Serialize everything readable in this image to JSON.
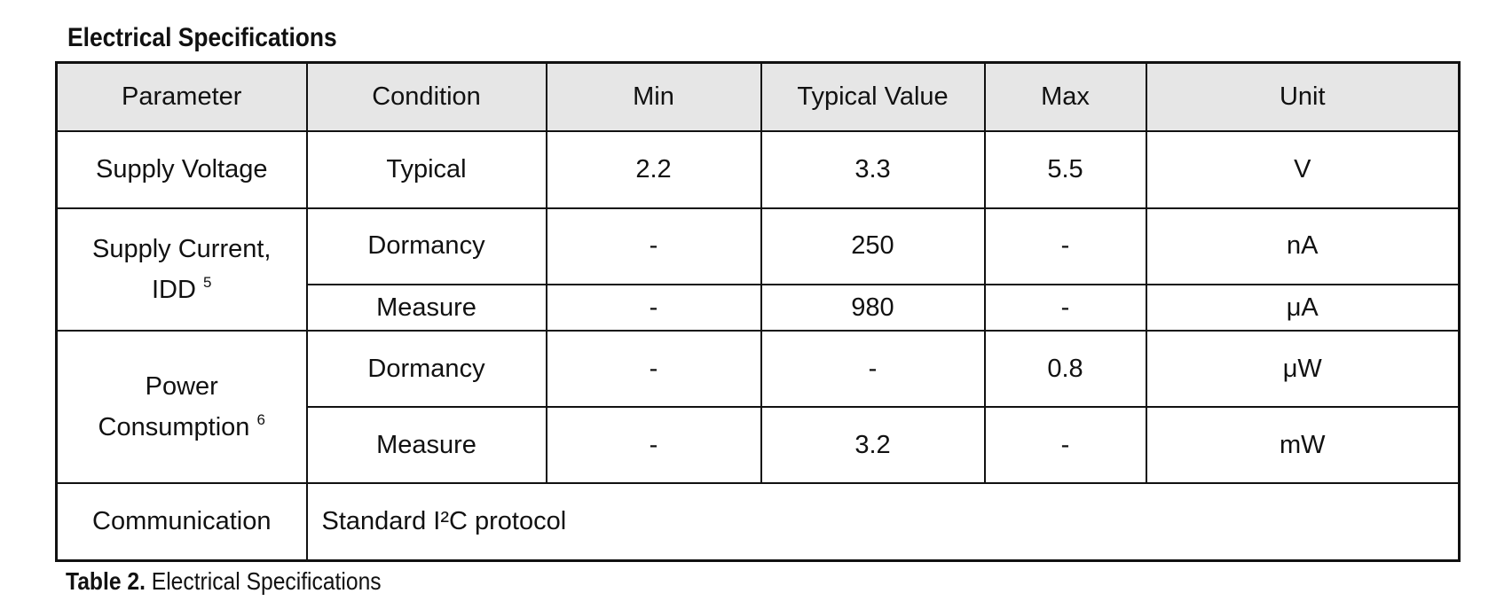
{
  "section_title": "Electrical Specifications",
  "headers": {
    "parameter": "Parameter",
    "condition": "Condition",
    "min": "Min",
    "typical": "Typical Value",
    "max": "Max",
    "unit": "Unit"
  },
  "rows": {
    "supply_voltage": {
      "parameter": "Supply Voltage",
      "condition": "Typical",
      "min": "2.2",
      "typical": "3.3",
      "max": "5.5",
      "unit": "V"
    },
    "supply_current": {
      "parameter_line1": "Supply Current,",
      "parameter_line2": "IDD",
      "footnote": "5",
      "sub": [
        {
          "condition": "Dormancy",
          "min": "-",
          "typical": "250",
          "max": "-",
          "unit": "nA"
        },
        {
          "condition": "Measure",
          "min": "-",
          "typical": "980",
          "max": "-",
          "unit": "μA"
        }
      ]
    },
    "power_consumption": {
      "parameter_line1": "Power",
      "parameter_line2": "Consumption",
      "footnote": "6",
      "sub": [
        {
          "condition": "Dormancy",
          "min": "-",
          "typical": "-",
          "max": "0.8",
          "unit": "μW"
        },
        {
          "condition": "Measure",
          "min": "-",
          "typical": "3.2",
          "max": "-",
          "unit": "mW"
        }
      ]
    },
    "communication": {
      "parameter": "Communication",
      "value": "Standard I²C protocol"
    }
  },
  "caption": {
    "label": "Table 2.",
    "text": " Electrical Specifications"
  }
}
